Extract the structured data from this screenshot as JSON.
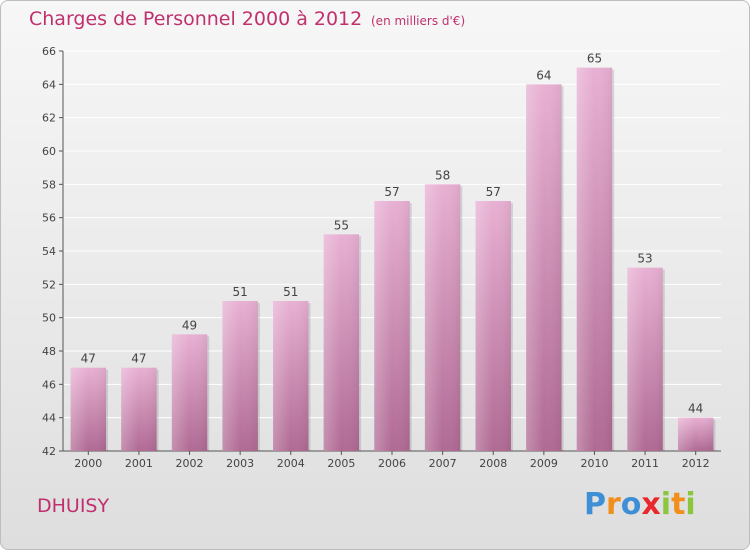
{
  "header": {
    "title": "Charges de Personnel 2000 à 2012",
    "subtitle": "(en milliers d'€)"
  },
  "footer": {
    "town": "DHUISY",
    "logo": "Proxiti",
    "logo_letters": [
      {
        "ch": "P",
        "color": "#3f8fd6"
      },
      {
        "ch": "r",
        "color": "#f28e1c"
      },
      {
        "ch": "o",
        "color": "#3f8fd6"
      },
      {
        "ch": "x",
        "color": "#e8282d"
      },
      {
        "ch": "i",
        "color": "#8cc63f"
      },
      {
        "ch": "t",
        "color": "#f28e1c"
      },
      {
        "ch": "i",
        "color": "#8cc63f"
      }
    ]
  },
  "colors": {
    "accent": "#c0306e",
    "bar_top": "#e8b0d3",
    "bar_bottom": "#b06a94",
    "grid": "#ffffff",
    "axis": "#555555"
  },
  "chart_data": {
    "type": "bar",
    "categories": [
      "2000",
      "2001",
      "2002",
      "2003",
      "2004",
      "2005",
      "2006",
      "2007",
      "2008",
      "2009",
      "2010",
      "2011",
      "2012"
    ],
    "values": [
      47,
      47,
      49,
      51,
      51,
      55,
      57,
      58,
      57,
      64,
      65,
      53,
      44
    ],
    "ylim": [
      42,
      66
    ],
    "yticks": [
      42,
      44,
      46,
      48,
      50,
      52,
      54,
      56,
      58,
      60,
      62,
      64,
      66
    ],
    "grid": true,
    "legend": "none"
  }
}
